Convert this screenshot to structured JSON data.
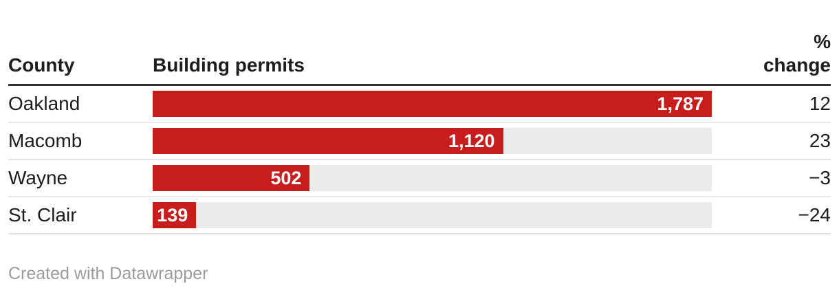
{
  "header": {
    "county": "County",
    "permits": "Building permits",
    "pct_change": "%\nchange"
  },
  "chart_data": {
    "type": "bar",
    "orientation": "horizontal",
    "title": "",
    "columns": [
      "County",
      "Building permits",
      "% change"
    ],
    "categories": [
      "Oakland",
      "Macomb",
      "Wayne",
      "St. Clair"
    ],
    "series": [
      {
        "name": "Building permits",
        "values": [
          1787,
          1120,
          502,
          139
        ]
      },
      {
        "name": "% change",
        "values": [
          12,
          23,
          -3,
          -24
        ]
      }
    ],
    "xlim": [
      0,
      1787
    ],
    "grid": false,
    "legend": "none",
    "rows": [
      {
        "county": "Oakland",
        "permits": 1787,
        "permits_label": "1,787",
        "pct_change": "12"
      },
      {
        "county": "Macomb",
        "permits": 1120,
        "permits_label": "1,120",
        "pct_change": "23"
      },
      {
        "county": "Wayne",
        "permits": 502,
        "permits_label": "502",
        "pct_change": "−3"
      },
      {
        "county": "St. Clair",
        "permits": 139,
        "permits_label": "139",
        "pct_change": "−24"
      }
    ]
  },
  "colors": {
    "bar": "#c71e1d",
    "track": "#ebebeb",
    "header_rule": "#333333",
    "row_separator": "#e3e3e3",
    "text": "#1d1d1d",
    "bar_value_label": "#ffffff",
    "footer_text": "#9b9b9b"
  },
  "footer": {
    "credit": "Created with Datawrapper"
  }
}
